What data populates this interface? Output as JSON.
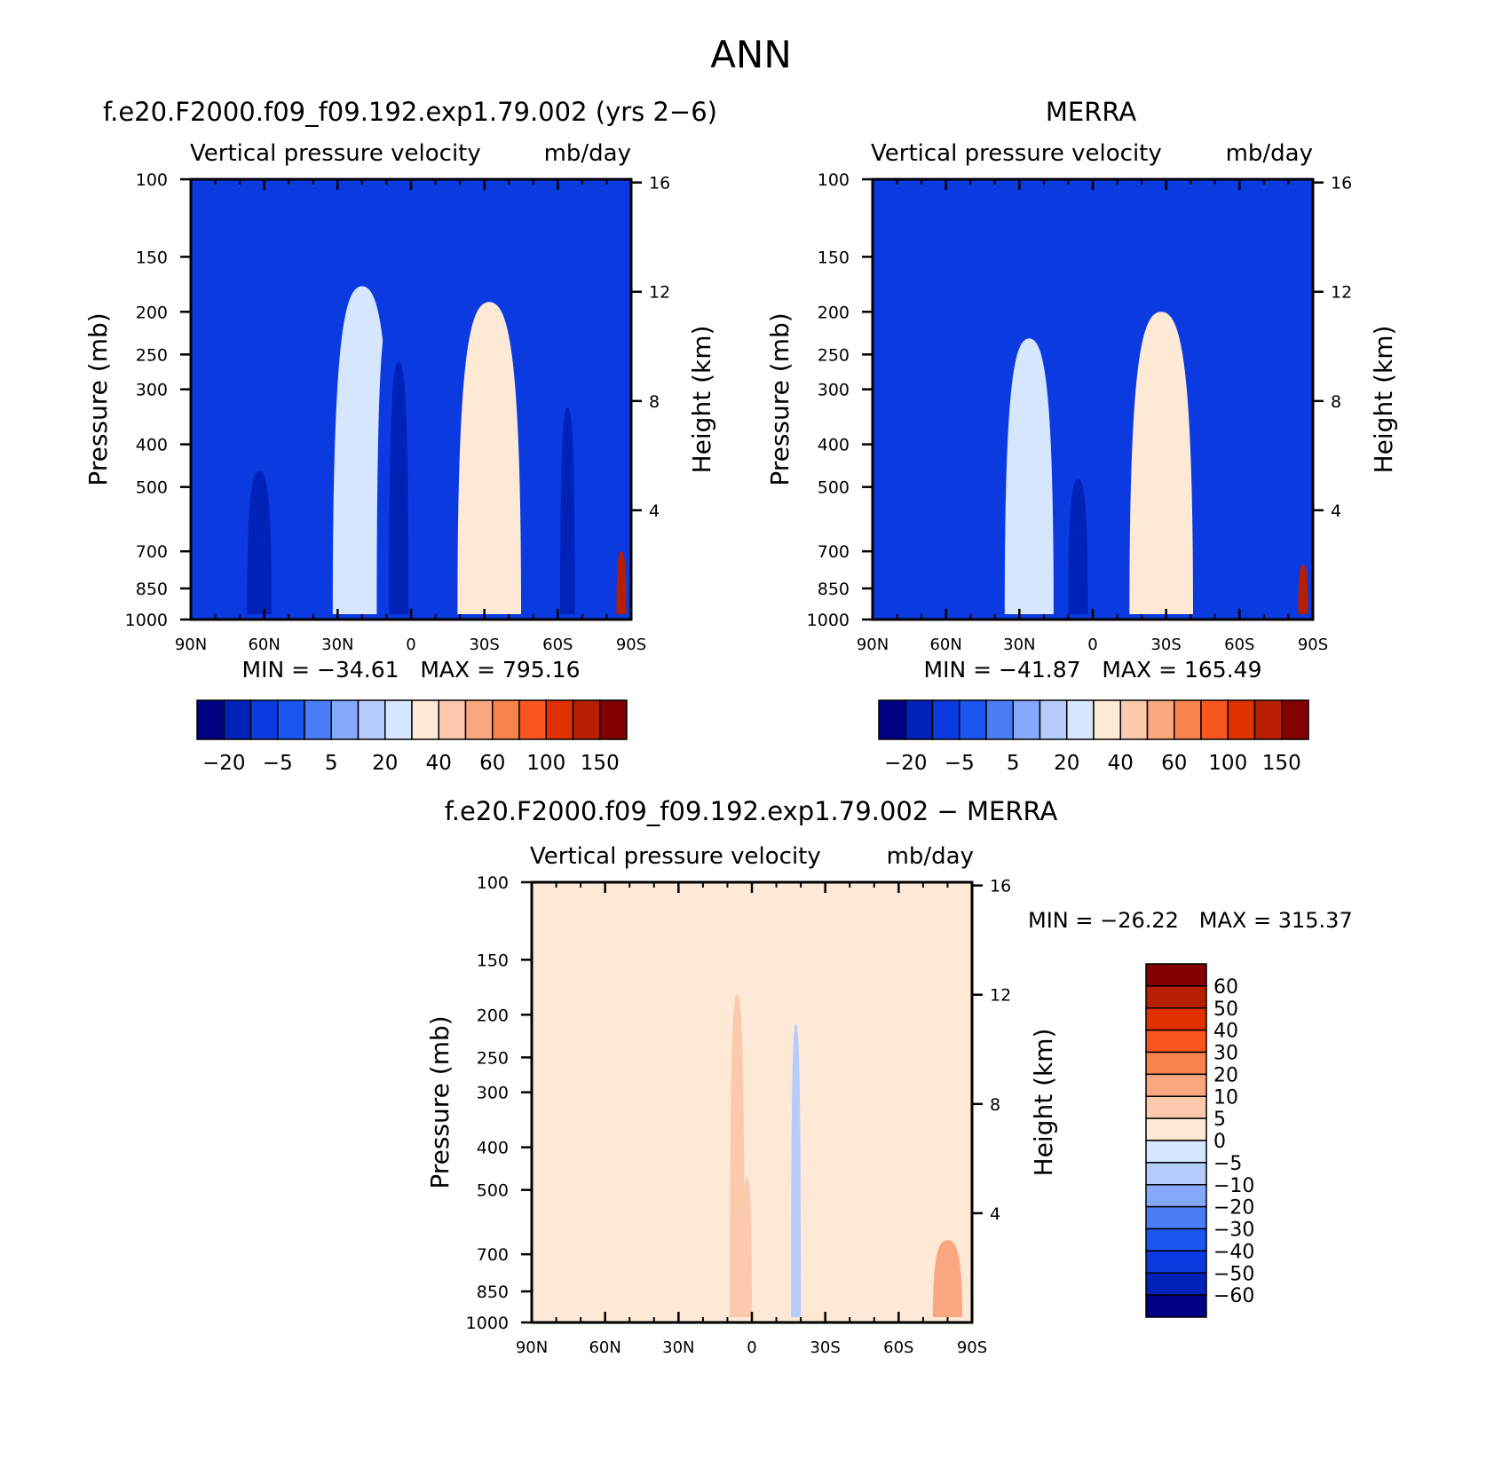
{
  "figure_title": "ANN",
  "colors": {
    "std": [
      "#000082",
      "#0022b8",
      "#0a3ae0",
      "#1a55f0",
      "#4a7cf5",
      "#86a8fa",
      "#b5ccfd",
      "#d5e6fe",
      "#fde9d6",
      "#fcc9ad",
      "#faa780",
      "#f7824e",
      "#fa5620",
      "#e03200",
      "#b81f00",
      "#820000"
    ],
    "diff": [
      "#000082",
      "#0022b8",
      "#0a3ae0",
      "#1a55f0",
      "#4a7cf5",
      "#86a8fa",
      "#b5ccfd",
      "#d5e6fe",
      "#fde9d6",
      "#fcc9ad",
      "#faa780",
      "#f7824e",
      "#fa5620",
      "#e03200",
      "#b81f00",
      "#820000"
    ]
  },
  "chart_data": [
    {
      "type": "heatmap",
      "id": "model",
      "title": "f.e20.F2000.f09_f09.192.exp1.79.002 (yrs 2−6)",
      "subtitle_left": "Vertical pressure velocity",
      "subtitle_right": "mb/day",
      "ylabel": "Pressure (mb)",
      "y2label": "Height (km)",
      "x_ticklabels": [
        "90N",
        "60N",
        "30N",
        "0",
        "30S",
        "60S",
        "90S"
      ],
      "y_ticklabels": [
        "100",
        "150",
        "200",
        "250",
        "300",
        "400",
        "500",
        "700",
        "850",
        "1000"
      ],
      "y_ticks_mb": [
        100,
        150,
        200,
        250,
        300,
        400,
        500,
        700,
        850,
        1000
      ],
      "y2_ticklabels": [
        "16",
        "12",
        "8",
        "4"
      ],
      "y2_ticks_km": [
        16,
        12,
        8,
        4
      ],
      "xlim": [
        90,
        -90
      ],
      "ylim_mb": [
        1000,
        100
      ],
      "stats": "MIN = −34.61   MAX = 795.16",
      "min": -34.61,
      "max": 795.16,
      "levels": [
        -30,
        -20,
        -10,
        -5,
        0,
        5,
        10,
        20,
        30,
        40,
        50,
        60,
        80,
        100,
        150
      ],
      "colorbar_labels": [
        "−20",
        "−5",
        "5",
        "20",
        "40",
        "60",
        "100",
        "150"
      ],
      "colorbar_orientation": "horizontal",
      "features": [
        {
          "lat": 62,
          "p_top": 460,
          "width": 5,
          "value": -22
        },
        {
          "lat": 20,
          "p_top": 175,
          "width": 12,
          "value": 18
        },
        {
          "lat": 8,
          "p_top": 200,
          "width": 6,
          "value": -16
        },
        {
          "lat": 5,
          "p_top": 260,
          "width": 4,
          "value": -24
        },
        {
          "lat": -32,
          "p_top": 190,
          "width": 13,
          "value": 22
        },
        {
          "lat": -62,
          "p_top": 230,
          "width": 5,
          "value": -18
        },
        {
          "lat": -64,
          "p_top": 330,
          "width": 3,
          "value": -25
        },
        {
          "lat": -86,
          "p_top": 700,
          "width": 2,
          "value": 120
        }
      ]
    },
    {
      "type": "heatmap",
      "id": "obs",
      "title": "MERRA",
      "subtitle_left": "Vertical pressure velocity",
      "subtitle_right": "mb/day",
      "ylabel": "Pressure (mb)",
      "y2label": "Height (km)",
      "x_ticklabels": [
        "90N",
        "60N",
        "30N",
        "0",
        "30S",
        "60S",
        "90S"
      ],
      "y_ticklabels": [
        "100",
        "150",
        "200",
        "250",
        "300",
        "400",
        "500",
        "700",
        "850",
        "1000"
      ],
      "y_ticks_mb": [
        100,
        150,
        200,
        250,
        300,
        400,
        500,
        700,
        850,
        1000
      ],
      "y2_ticklabels": [
        "16",
        "12",
        "8",
        "4"
      ],
      "y2_ticks_km": [
        16,
        12,
        8,
        4
      ],
      "xlim": [
        90,
        -90
      ],
      "ylim_mb": [
        1000,
        100
      ],
      "stats": "MIN = −41.87   MAX = 165.49",
      "min": -41.87,
      "max": 165.49,
      "levels": [
        -30,
        -20,
        -10,
        -5,
        0,
        5,
        10,
        20,
        30,
        40,
        50,
        60,
        80,
        100,
        150
      ],
      "colorbar_labels": [
        "−20",
        "−5",
        "5",
        "20",
        "40",
        "60",
        "100",
        "150"
      ],
      "colorbar_orientation": "horizontal",
      "features": [
        {
          "lat": 60,
          "p_top": 320,
          "width": 6,
          "value": -20
        },
        {
          "lat": 26,
          "p_top": 230,
          "width": 10,
          "value": 18
        },
        {
          "lat": 8,
          "p_top": 200,
          "width": 7,
          "value": -18
        },
        {
          "lat": 6,
          "p_top": 480,
          "width": 4,
          "value": -30
        },
        {
          "lat": -28,
          "p_top": 200,
          "width": 13,
          "value": 22
        },
        {
          "lat": -60,
          "p_top": 260,
          "width": 5,
          "value": -20
        },
        {
          "lat": -86,
          "p_top": 750,
          "width": 2,
          "value": 110
        }
      ]
    },
    {
      "type": "heatmap",
      "id": "diff",
      "title": "f.e20.F2000.f09_f09.192.exp1.79.002 − MERRA",
      "subtitle_left": "Vertical pressure velocity",
      "subtitle_right": "mb/day",
      "ylabel": "Pressure (mb)",
      "y2label": "Height (km)",
      "x_ticklabels": [
        "90N",
        "60N",
        "30N",
        "0",
        "30S",
        "60S",
        "90S"
      ],
      "y_ticklabels": [
        "100",
        "150",
        "200",
        "250",
        "300",
        "400",
        "500",
        "700",
        "850",
        "1000"
      ],
      "y_ticks_mb": [
        100,
        150,
        200,
        250,
        300,
        400,
        500,
        700,
        850,
        1000
      ],
      "y2_ticklabels": [
        "16",
        "12",
        "8",
        "4"
      ],
      "y2_ticks_km": [
        16,
        12,
        8,
        4
      ],
      "xlim": [
        90,
        -90
      ],
      "ylim_mb": [
        1000,
        100
      ],
      "stats": "MIN = −26.22   MAX = 315.37",
      "min": -26.22,
      "max": 315.37,
      "levels": [
        -60,
        -50,
        -40,
        -30,
        -20,
        -10,
        -5,
        0,
        5,
        10,
        20,
        30,
        40,
        50,
        60
      ],
      "colorbar_labels": [
        "60",
        "50",
        "40",
        "30",
        "20",
        "10",
        "5",
        "0",
        "−5",
        "−10",
        "−20",
        "−30",
        "−40",
        "−50",
        "−60"
      ],
      "colorbar_orientation": "vertical",
      "features": [
        {
          "lat": 50,
          "p_top": 100,
          "width": 18,
          "value": 3
        },
        {
          "lat": 8,
          "p_top": 100,
          "width": 16,
          "value": 3
        },
        {
          "lat": 6,
          "p_top": 180,
          "width": 3,
          "value": 8
        },
        {
          "lat": -42,
          "p_top": 100,
          "width": 20,
          "value": 3
        },
        {
          "lat": -18,
          "p_top": 210,
          "width": 2,
          "value": -8
        },
        {
          "lat": 2,
          "p_top": 470,
          "width": 2,
          "value": 7
        },
        {
          "lat": -80,
          "p_top": 650,
          "width": 6,
          "value": 14
        }
      ]
    }
  ]
}
